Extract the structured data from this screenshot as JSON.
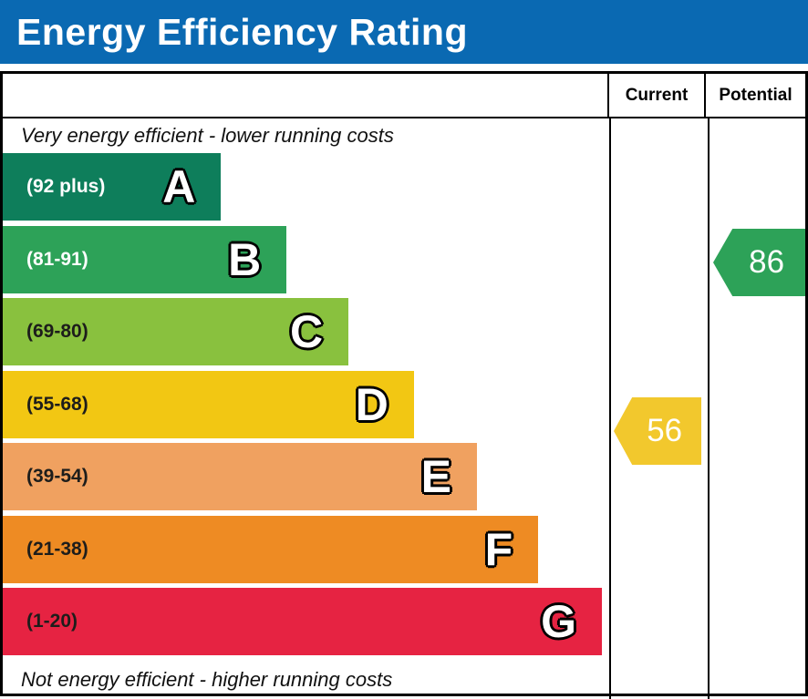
{
  "title": "Energy Efficiency Rating",
  "columns": {
    "current": "Current",
    "potential": "Potential"
  },
  "captions": {
    "top": "Very energy efficient - lower running costs",
    "bottom": "Not energy efficient - higher running costs"
  },
  "colors": {
    "title_bar": "#0a69b2",
    "border": "#000000"
  },
  "chart_data": {
    "type": "bar",
    "title": "Energy Efficiency Rating",
    "categories": [
      "A",
      "B",
      "C",
      "D",
      "E",
      "F",
      "G"
    ],
    "bands": [
      {
        "letter": "A",
        "range": "(92 plus)",
        "min": 92,
        "max": 100,
        "color": "#0e7e5b",
        "text_color": "#ffffff",
        "width_pct": 36.0
      },
      {
        "letter": "B",
        "range": "(81-91)",
        "min": 81,
        "max": 91,
        "color": "#2da258",
        "text_color": "#ffffff",
        "width_pct": 46.8
      },
      {
        "letter": "C",
        "range": "(69-80)",
        "min": 69,
        "max": 80,
        "color": "#89c13e",
        "text_color": "#1d1d1b",
        "width_pct": 57.0
      },
      {
        "letter": "D",
        "range": "(55-68)",
        "min": 55,
        "max": 68,
        "color": "#f2c713",
        "text_color": "#1d1d1b",
        "width_pct": 67.8
      },
      {
        "letter": "E",
        "range": "(39-54)",
        "min": 39,
        "max": 54,
        "color": "#f0a160",
        "text_color": "#1d1d1b",
        "width_pct": 78.2
      },
      {
        "letter": "F",
        "range": "(21-38)",
        "min": 21,
        "max": 38,
        "color": "#ee8b23",
        "text_color": "#1d1d1b",
        "width_pct": 88.3
      },
      {
        "letter": "G",
        "range": "(1-20)",
        "min": 1,
        "max": 20,
        "color": "#e62342",
        "text_color": "#1d1d1b",
        "width_pct": 98.8
      }
    ],
    "current": {
      "label": "Current",
      "value": 56,
      "band": "D",
      "color": "#f2c82d"
    },
    "potential": {
      "label": "Potential",
      "value": 86,
      "band": "B",
      "color": "#2da258"
    }
  }
}
